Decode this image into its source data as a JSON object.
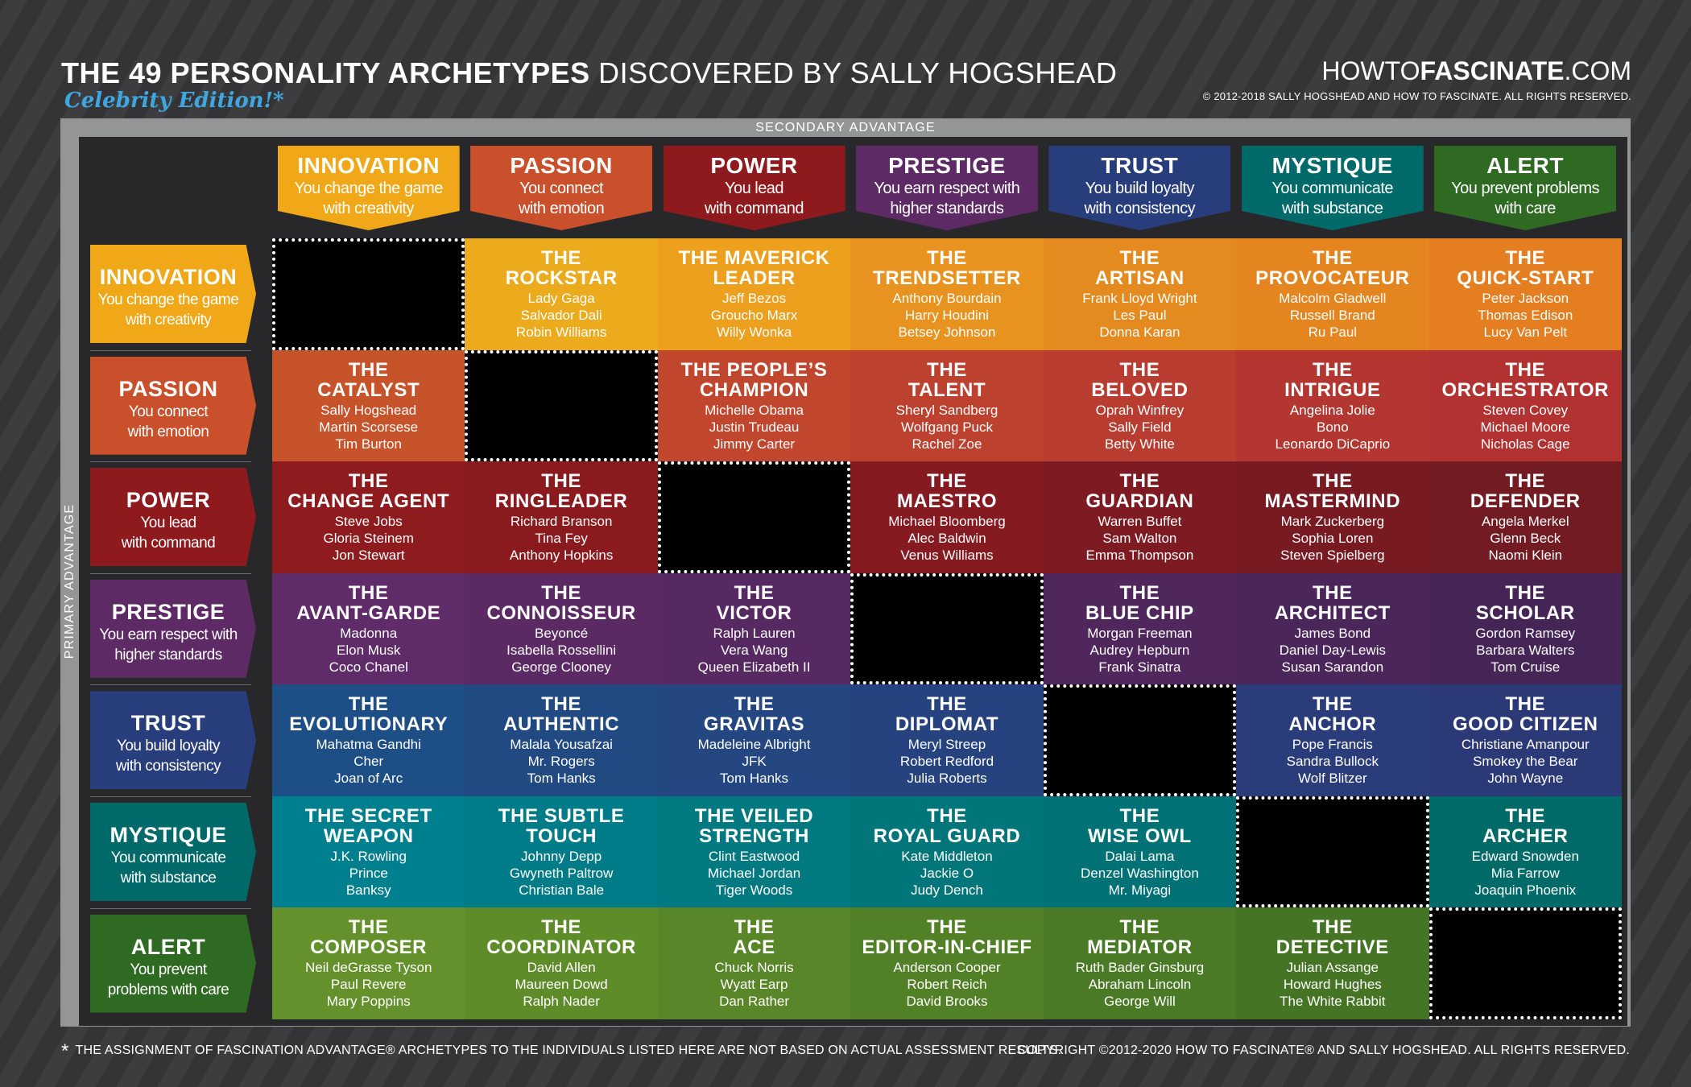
{
  "header": {
    "title_bold": "THE 49 PERSONALITY ARCHETYPES",
    "title_light": "DISCOVERED BY SALLY HOGSHEAD",
    "subtitle": "Celebrity Edition!*",
    "site_light1": "HOWTO",
    "site_bold": "FASCINATE",
    "site_light2": ".COM",
    "site_copyright": "© 2012-2018 SALLY HOGSHEAD AND HOW TO FASCINATE. ALL RIGHTS RESERVED."
  },
  "axis": {
    "secondary": "SECONDARY ADVANTAGE",
    "primary": "PRIMARY ADVANTAGE"
  },
  "advantages": [
    {
      "name": "INNOVATION",
      "col_desc": [
        "You change the game",
        "with creativity"
      ],
      "row_desc": [
        "You change the game",
        "with creativity"
      ],
      "color": "#f0a818",
      "cell_color": "#e89a1b"
    },
    {
      "name": "PASSION",
      "col_desc": [
        "You connect",
        "with emotion"
      ],
      "row_desc": [
        "You connect",
        "with emotion"
      ],
      "color": "#c9502b",
      "cell_color": "#c4502c"
    },
    {
      "name": "POWER",
      "col_desc": [
        "You lead",
        "with command"
      ],
      "row_desc": [
        "You lead",
        "with command"
      ],
      "color": "#8e1a1d",
      "cell_color": "#8c1a1e"
    },
    {
      "name": "PRESTIGE",
      "col_desc": [
        "You earn respect with",
        "higher standards"
      ],
      "row_desc": [
        "You earn respect with",
        "higher standards"
      ],
      "color": "#5e2a66",
      "cell_color": "#5b2a63"
    },
    {
      "name": "TRUST",
      "col_desc": [
        "You build loyalty",
        "with consistency"
      ],
      "row_desc": [
        "You build loyalty",
        "with consistency"
      ],
      "color": "#273d7c",
      "cell_color": "#26417e"
    },
    {
      "name": "MYSTIQUE",
      "col_desc": [
        "You communicate",
        "with substance"
      ],
      "row_desc": [
        "You communicate",
        "with substance"
      ],
      "color": "#006a6b",
      "cell_color": "#007378"
    },
    {
      "name": "ALERT",
      "col_desc": [
        "You prevent problems",
        "with care"
      ],
      "row_desc": [
        "You prevent",
        "problems with care"
      ],
      "color": "#2f6a22",
      "cell_color": "#4e7d25"
    }
  ],
  "rows": [
    {
      "colors": [
        "#000",
        "#ecab1d",
        "#eca01e",
        "#e8931f",
        "#e48a1f",
        "#e5851f",
        "#e47e20"
      ],
      "cells": [
        null,
        {
          "title": [
            "THE",
            "ROCKSTAR"
          ],
          "names": [
            "Lady Gaga",
            "Salvador Dali",
            "Robin Williams"
          ]
        },
        {
          "title": [
            "THE MAVERICK",
            "LEADER"
          ],
          "names": [
            "Jeff Bezos",
            "Groucho Marx",
            "Willy Wonka"
          ]
        },
        {
          "title": [
            "THE",
            "TRENDSETTER"
          ],
          "names": [
            "Anthony Bourdain",
            "Harry Houdini",
            "Betsey Johnson"
          ]
        },
        {
          "title": [
            "THE",
            "ARTISAN"
          ],
          "names": [
            "Frank Lloyd Wright",
            "Les Paul",
            "Donna Karan"
          ]
        },
        {
          "title": [
            "THE",
            "PROVOCATEUR"
          ],
          "names": [
            "Malcolm Gladwell",
            "Russell Brand",
            "Ru Paul"
          ]
        },
        {
          "title": [
            "THE",
            "QUICK-START"
          ],
          "names": [
            "Peter Jackson",
            "Thomas Edison",
            "Lucy Van Pelt"
          ]
        }
      ]
    },
    {
      "colors": [
        "#c6532a",
        "#000",
        "#c0462e",
        "#bd412f",
        "#b83c30",
        "#b43631",
        "#b23131"
      ],
      "cells": [
        {
          "title": [
            "THE",
            "CATALYST"
          ],
          "names": [
            "Sally Hogshead",
            "Martin Scorsese",
            "Tim Burton"
          ]
        },
        null,
        {
          "title": [
            "THE PEOPLE’S",
            "CHAMPION"
          ],
          "names": [
            "Michelle Obama",
            "Justin Trudeau",
            "Jimmy Carter"
          ]
        },
        {
          "title": [
            "THE",
            "TALENT"
          ],
          "names": [
            "Sheryl Sandberg",
            "Wolfgang Puck",
            "Rachel Zoe"
          ]
        },
        {
          "title": [
            "THE",
            "BELOVED"
          ],
          "names": [
            "Oprah Winfrey",
            "Sally Field",
            "Betty White"
          ]
        },
        {
          "title": [
            "THE",
            "INTRIGUE"
          ],
          "names": [
            "Angelina Jolie",
            "Bono",
            "Leonardo DiCaprio"
          ]
        },
        {
          "title": [
            "THE",
            "ORCHESTRATOR"
          ],
          "names": [
            "Steven Covey",
            "Michael Moore",
            "Nicholas Cage"
          ]
        }
      ]
    },
    {
      "colors": [
        "#8e1b1e",
        "#8b1a1f",
        "#000",
        "#851a20",
        "#7e1a21",
        "#781a22",
        "#721b22"
      ],
      "cells": [
        {
          "title": [
            "THE",
            "CHANGE AGENT"
          ],
          "names": [
            "Steve Jobs",
            "Gloria Steinem",
            "Jon Stewart"
          ]
        },
        {
          "title": [
            "THE",
            "RINGLEADER"
          ],
          "names": [
            "Richard Branson",
            "Tina Fey",
            "Anthony Hopkins"
          ]
        },
        null,
        {
          "title": [
            "THE",
            "MAESTRO"
          ],
          "names": [
            "Michael Bloomberg",
            "Alec Baldwin",
            "Venus Williams"
          ]
        },
        {
          "title": [
            "THE",
            "GUARDIAN"
          ],
          "names": [
            "Warren Buffet",
            "Sam Walton",
            "Emma Thompson"
          ]
        },
        {
          "title": [
            "THE",
            "MASTERMIND"
          ],
          "names": [
            "Mark Zuckerberg",
            "Sophia Loren",
            "Steven Spielberg"
          ]
        },
        {
          "title": [
            "THE",
            "DEFENDER"
          ],
          "names": [
            "Angela Merkel",
            "Glenn Beck",
            "Naomi Klein"
          ]
        }
      ]
    },
    {
      "colors": [
        "#5f2b68",
        "#5b2a65",
        "#572962",
        "#000",
        "#4f275d",
        "#4a265a",
        "#452556"
      ],
      "cells": [
        {
          "title": [
            "THE",
            "AVANT-GARDE"
          ],
          "names": [
            "Madonna",
            "Elon Musk",
            "Coco Chanel"
          ]
        },
        {
          "title": [
            "THE",
            "CONNOISSEUR"
          ],
          "names": [
            "Beyoncé",
            "Isabella Rossellini",
            "George Clooney"
          ]
        },
        {
          "title": [
            "THE",
            "VICTOR"
          ],
          "names": [
            "Ralph Lauren",
            "Vera Wang",
            "Queen Elizabeth II"
          ]
        },
        null,
        {
          "title": [
            "THE",
            "BLUE CHIP"
          ],
          "names": [
            "Morgan Freeman",
            "Audrey Hepburn",
            "Frank Sinatra"
          ]
        },
        {
          "title": [
            "THE",
            "ARCHITECT"
          ],
          "names": [
            "James Bond",
            "Daniel Day-Lewis",
            "Susan Sarandon"
          ]
        },
        {
          "title": [
            "THE",
            "SCHOLAR"
          ],
          "names": [
            "Gordon Ramsey",
            "Barbara Walters",
            "Tom Cruise"
          ]
        }
      ]
    },
    {
      "colors": [
        "#1d4e86",
        "#214a83",
        "#244681",
        "#26437f",
        "#000",
        "#2a3c7a",
        "#2c3977"
      ],
      "cells": [
        {
          "title": [
            "THE",
            "EVOLUTIONARY"
          ],
          "names": [
            "Mahatma Gandhi",
            "Cher",
            "Joan of Arc"
          ]
        },
        {
          "title": [
            "THE",
            "AUTHENTIC"
          ],
          "names": [
            "Malala Yousafzai",
            "Mr. Rogers",
            "Tom Hanks"
          ]
        },
        {
          "title": [
            "THE",
            "GRAVITAS"
          ],
          "names": [
            "Madeleine Albright",
            "JFK",
            "Tom Hanks"
          ]
        },
        {
          "title": [
            "THE",
            "DIPLOMAT"
          ],
          "names": [
            "Meryl Streep",
            "Robert Redford",
            "Julia Roberts"
          ]
        },
        null,
        {
          "title": [
            "THE",
            "ANCHOR"
          ],
          "names": [
            "Pope Francis",
            "Sandra Bullock",
            "Wolf Blitzer"
          ]
        },
        {
          "title": [
            "THE",
            "GOOD CITIZEN"
          ],
          "names": [
            "Christiane Amanpour",
            "Smokey the Bear",
            "John Wayne"
          ]
        }
      ]
    },
    {
      "colors": [
        "#007f8e",
        "#007c88",
        "#007981",
        "#00767b",
        "#007275",
        "#000",
        "#006a68"
      ],
      "cells": [
        {
          "title": [
            "THE SECRET",
            "WEAPON"
          ],
          "names": [
            "J.K. Rowling",
            "Prince",
            "Banksy"
          ]
        },
        {
          "title": [
            "THE SUBTLE",
            "TOUCH"
          ],
          "names": [
            "Johnny Depp",
            "Gwyneth Paltrow",
            "Christian Bale"
          ]
        },
        {
          "title": [
            "THE VEILED",
            "STRENGTH"
          ],
          "names": [
            "Clint Eastwood",
            "Michael Jordan",
            "Tiger Woods"
          ]
        },
        {
          "title": [
            "THE",
            "ROYAL GUARD"
          ],
          "names": [
            "Kate Middleton",
            "Jackie O",
            "Judy Dench"
          ]
        },
        {
          "title": [
            "THE",
            "WISE OWL"
          ],
          "names": [
            "Dalai Lama",
            "Denzel Washington",
            "Mr. Miyagi"
          ]
        },
        null,
        {
          "title": [
            "THE",
            "ARCHER"
          ],
          "names": [
            "Edward Snowden",
            "Mia Farrow",
            "Joaquin Phoenix"
          ]
        }
      ]
    },
    {
      "colors": [
        "#64912b",
        "#5e8c29",
        "#588628",
        "#528027",
        "#4b7a26",
        "#457425",
        "#000"
      ],
      "cells": [
        {
          "title": [
            "THE",
            "COMPOSER"
          ],
          "names": [
            "Neil deGrasse Tyson",
            "Paul Revere",
            "Mary Poppins"
          ]
        },
        {
          "title": [
            "THE",
            "COORDINATOR"
          ],
          "names": [
            "David Allen",
            "Maureen Dowd",
            "Ralph Nader"
          ]
        },
        {
          "title": [
            "THE",
            "ACE"
          ],
          "names": [
            "Chuck Norris",
            "Wyatt Earp",
            "Dan Rather"
          ]
        },
        {
          "title": [
            "THE",
            "EDITOR-IN-CHIEF"
          ],
          "names": [
            "Anderson Cooper",
            "Robert Reich",
            "David Brooks"
          ]
        },
        {
          "title": [
            "THE",
            "MEDIATOR"
          ],
          "names": [
            "Ruth Bader Ginsburg",
            "Abraham Lincoln",
            "George Will"
          ]
        },
        {
          "title": [
            "THE",
            "DETECTIVE"
          ],
          "names": [
            "Julian Assange",
            "Howard Hughes",
            "The White Rabbit"
          ]
        },
        null
      ]
    }
  ],
  "footer": {
    "star": "*",
    "note": "THE ASSIGNMENT OF FASCINATION ADVANTAGE® ARCHETYPES TO THE INDIVIDUALS LISTED HERE ARE NOT BASED ON ACTUAL ASSESSMENT RESULTS.",
    "copyright": "COPYRIGHT ©2012-2020 HOW TO FASCINATE® AND SALLY HOGSHEAD. ALL RIGHTS RESERVED."
  }
}
